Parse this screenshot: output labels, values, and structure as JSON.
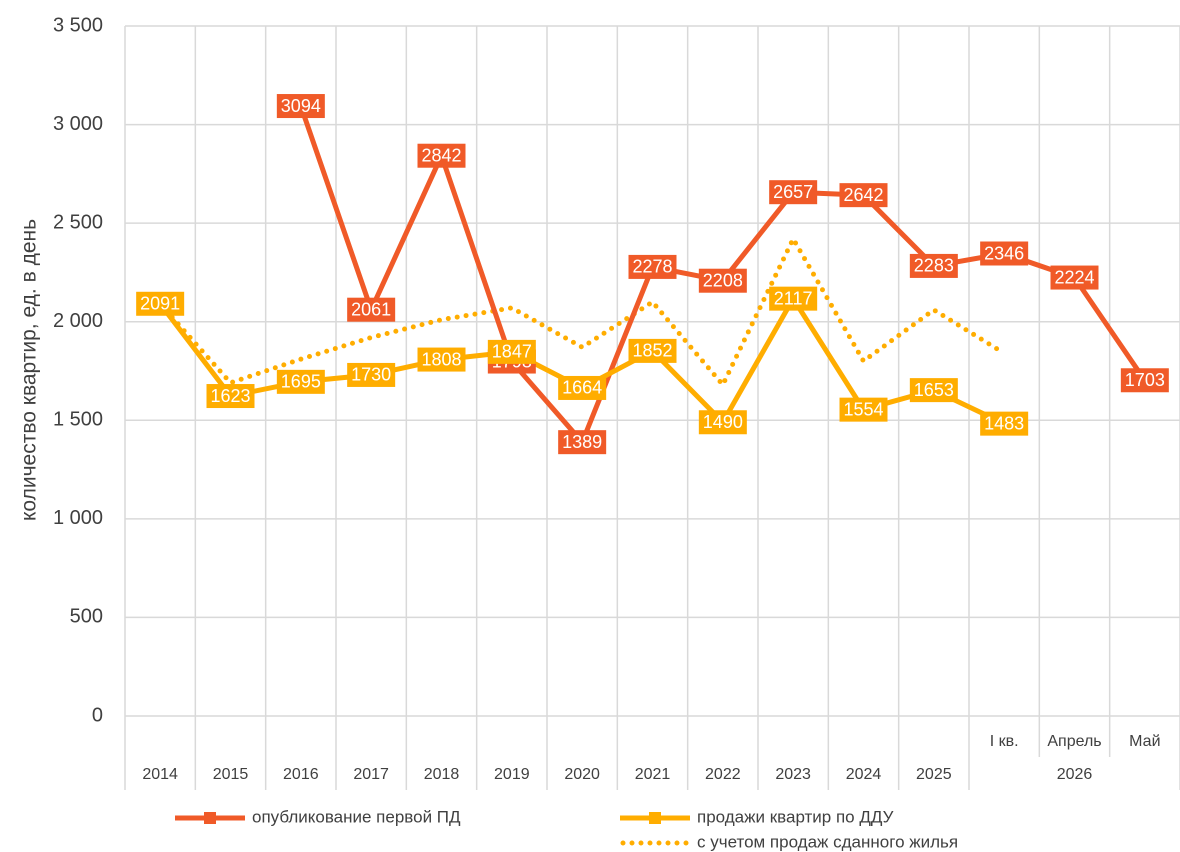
{
  "chart_data": {
    "type": "line",
    "y_label": "количество квартир, ед. в день",
    "categories": [
      "2014",
      "2015",
      "2016",
      "2017",
      "2018",
      "2019",
      "2020",
      "2021",
      "2022",
      "2023",
      "2024",
      "2025",
      "I кв.",
      "Апрель",
      "Май"
    ],
    "category_groups": [
      {
        "label": "2026",
        "from": 12,
        "to": 14
      }
    ],
    "series": [
      {
        "name": "опубликование первой ПД",
        "color": "#f05a28",
        "style": "solid",
        "marker": "square",
        "data_labels": true,
        "values": [
          null,
          null,
          3094,
          2061,
          2842,
          1798,
          1389,
          2278,
          2208,
          2657,
          2642,
          2283,
          2346,
          2224,
          1703
        ]
      },
      {
        "name": "продажи квартир по ДДУ",
        "color": "#ffad00",
        "style": "solid",
        "marker": "square",
        "data_labels": true,
        "values": [
          2091,
          1623,
          1695,
          1730,
          1808,
          1847,
          1664,
          1852,
          1490,
          2117,
          1554,
          1653,
          1483,
          null,
          null
        ]
      },
      {
        "name": "с учетом продаж сданного жилья",
        "color": "#ffad00",
        "style": "dotted",
        "marker": "none",
        "data_labels": false,
        "values": [
          2091,
          1690,
          1810,
          1920,
          2010,
          2070,
          1870,
          2100,
          1680,
          2420,
          1800,
          2060,
          1840,
          null,
          null
        ]
      }
    ],
    "ylim": [
      0,
      3500
    ],
    "yticks": [
      0,
      500,
      {
        "value": 1000,
        "label": "1 000"
      },
      {
        "value": 1500,
        "label": "1 500"
      },
      {
        "value": 2000,
        "label": "2 000"
      },
      {
        "value": 2500,
        "label": "2 500"
      },
      {
        "value": 3000,
        "label": "3 000"
      },
      {
        "value": 3500,
        "label": "3 500"
      }
    ],
    "grid": true
  }
}
